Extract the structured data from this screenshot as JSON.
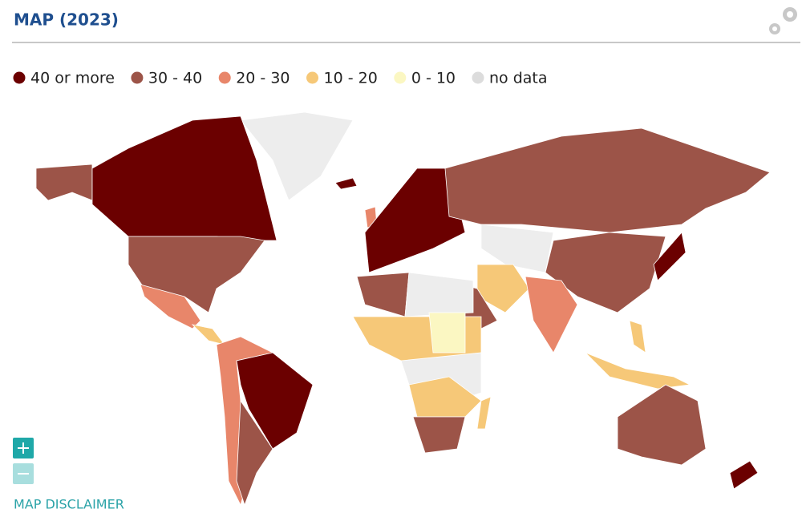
{
  "header": {
    "title": "MAP (2023)"
  },
  "legend": [
    {
      "label": "40 or more",
      "color": "#6b0000"
    },
    {
      "label": "30 - 40",
      "color": "#9c5448"
    },
    {
      "label": "20 - 30",
      "color": "#e8866a"
    },
    {
      "label": "10 - 20",
      "color": "#f6c878"
    },
    {
      "label": "0 - 10",
      "color": "#fbf7c2"
    },
    {
      "label": "no data",
      "color": "#dcdcdc"
    }
  ],
  "footer": {
    "link": "MAP DISCLAIMER"
  }
}
